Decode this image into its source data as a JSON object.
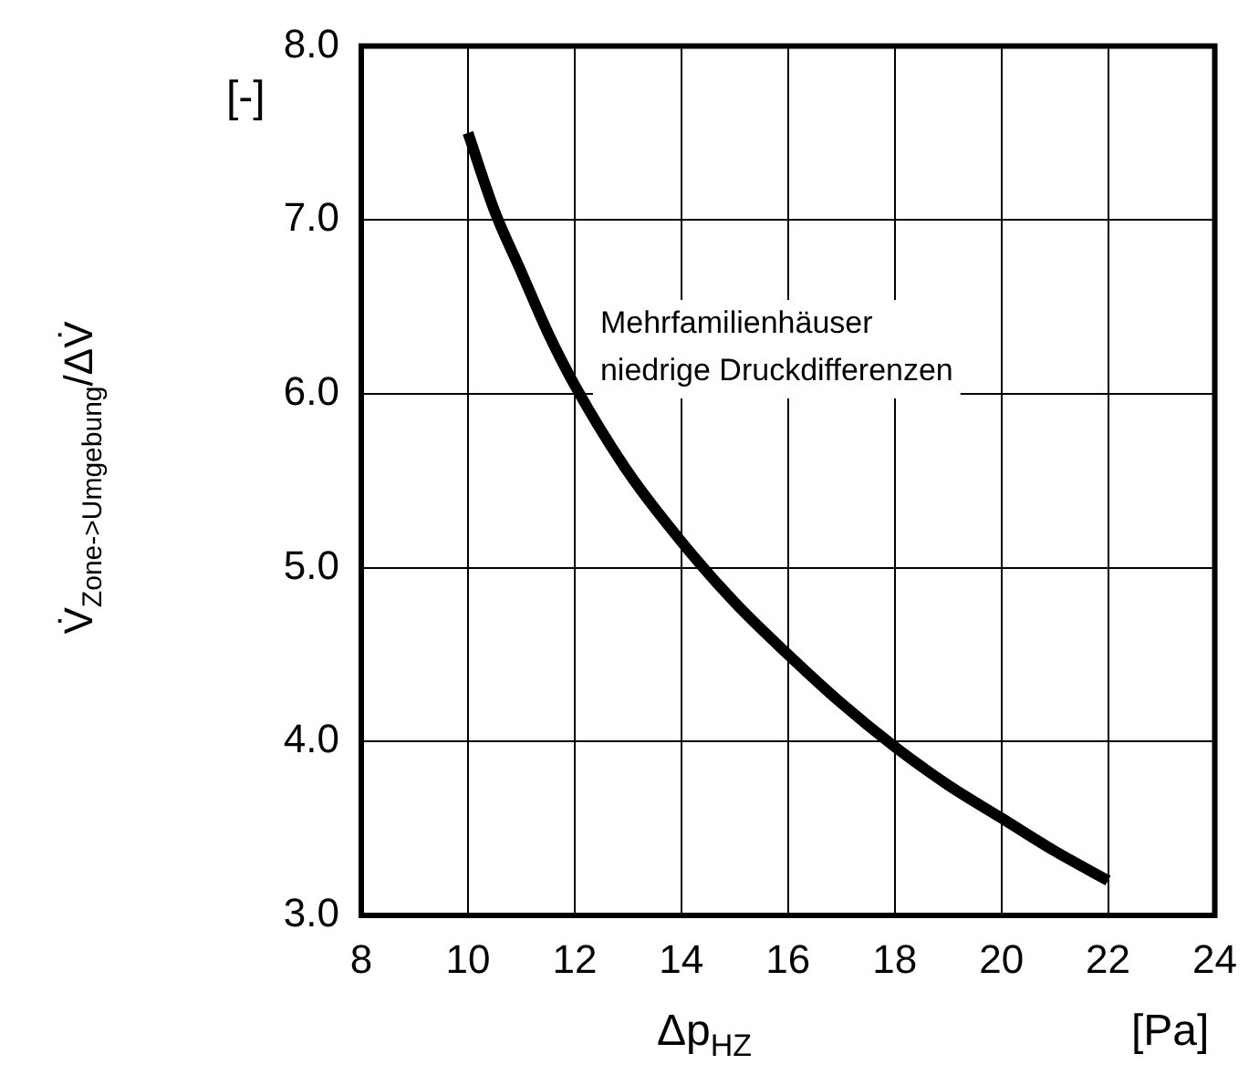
{
  "chart_data": {
    "type": "line",
    "xlabel": "Δp$_{HZ}$",
    "ylabel": "V̇$_{Zone->Umgebung}$/ΔV̇",
    "annotations": [
      "[-]",
      "[Pa]"
    ],
    "x": [
      10,
      10.5,
      11,
      11.5,
      12,
      13,
      14,
      15,
      16,
      17,
      18,
      19,
      20,
      21,
      22
    ],
    "series": [
      {
        "name": "Mehrfamilienhäuser\nniedrige Druckdifferenzen",
        "color": "#000000",
        "values": [
          7.5,
          7.05,
          6.7,
          6.35,
          6.05,
          5.55,
          5.15,
          4.8,
          4.5,
          4.22,
          3.97,
          3.75,
          3.56,
          3.37,
          3.2
        ]
      }
    ],
    "xlim": [
      8,
      24
    ],
    "xticks": [
      8,
      10,
      12,
      14,
      16,
      18,
      20,
      22,
      24
    ],
    "ylim": [
      3,
      8
    ],
    "yticks": [
      {
        "value": 3,
        "label": "3.0"
      },
      {
        "value": 4,
        "label": "4.0"
      },
      {
        "value": 5,
        "label": "5.0"
      },
      {
        "value": 6,
        "label": "6.0"
      },
      {
        "value": 7,
        "label": "7.0"
      },
      {
        "value": 8,
        "label": "8.0"
      }
    ],
    "grid": true,
    "legend": false,
    "marker": "none",
    "line_style": "solid"
  }
}
